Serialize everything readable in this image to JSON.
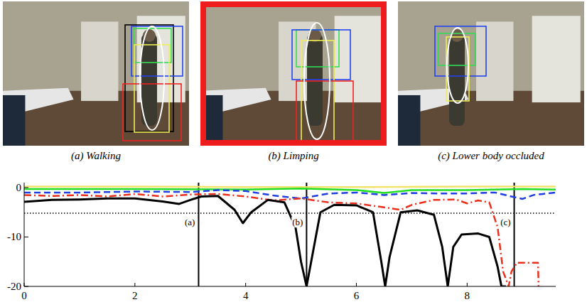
{
  "figure": {
    "panels": [
      {
        "caption": "(a) Walking",
        "highlighted": false
      },
      {
        "caption": "(b) Limping",
        "highlighted": true
      },
      {
        "caption": "(c) Lower body occluded",
        "highlighted": false
      }
    ]
  },
  "chart_data": {
    "type": "line",
    "xlim": [
      0,
      9.6
    ],
    "ylim": [
      -20,
      1
    ],
    "xticks": [
      0,
      2,
      4,
      6,
      8
    ],
    "yticks": [
      0,
      -10,
      -20
    ],
    "hlines": [
      -5.2
    ],
    "vlines": [
      {
        "x": 3.15,
        "label": "(a)"
      },
      {
        "x": 5.1,
        "label": "(b)"
      },
      {
        "x": 8.85,
        "label": "(c)"
      }
    ],
    "series": [
      {
        "color": "#f2e36b",
        "line_style": "solid",
        "x": [
          0,
          2,
          4,
          6,
          8,
          9.6
        ],
        "values": [
          0.2,
          0.2,
          0.1,
          0.1,
          0.2,
          0.2
        ]
      },
      {
        "color": "#22dd22",
        "line_style": "solid",
        "x": [
          0,
          2,
          4,
          5,
          6,
          6.5,
          7,
          8,
          9,
          9.6
        ],
        "values": [
          -0.3,
          -0.3,
          -0.4,
          -0.2,
          -0.5,
          -1.1,
          -0.5,
          -0.5,
          -0.3,
          -0.4
        ]
      },
      {
        "color": "#1f3fe0",
        "line_style": "dashed",
        "x": [
          0,
          1,
          2,
          3,
          3.5,
          4,
          4.5,
          5,
          5.5,
          6,
          6.5,
          7,
          7.5,
          8,
          8.5,
          8.8,
          9,
          9.2,
          9.6
        ],
        "values": [
          -1,
          -1,
          -0.8,
          -0.9,
          -0.5,
          -0.7,
          -1.6,
          -2.2,
          -1.2,
          -1,
          -1.5,
          -1.1,
          -1.2,
          -1.2,
          -1,
          -1.8,
          -2.3,
          -1.5,
          -1
        ]
      },
      {
        "color": "#e8301c",
        "line_style": "dashdot",
        "x": [
          0,
          0.5,
          1,
          1.5,
          2,
          2.5,
          3,
          3.5,
          4,
          4.5,
          5,
          5.5,
          6,
          6.5,
          6.8,
          7,
          7.4,
          7.8,
          8,
          8.2,
          8.4,
          8.55,
          8.65,
          8.75,
          8.8,
          8.9,
          9.2,
          9.28,
          9.29
        ],
        "values": [
          -1.5,
          -1.7,
          -1.5,
          -1.8,
          -1.3,
          -1.8,
          -1.4,
          -1.3,
          -1.8,
          -2.6,
          -2.2,
          -3,
          -3.2,
          -4,
          -4.5,
          -3.5,
          -2.5,
          -2.4,
          -3.2,
          -2.6,
          -3,
          -8,
          -17,
          -20,
          -17,
          -15.2,
          -15.2,
          -15.2,
          -20
        ]
      },
      {
        "color": "#000000",
        "line_style": "solid",
        "x": [
          0,
          0.5,
          1,
          1.5,
          2,
          2.5,
          2.8,
          3,
          3.2,
          3.5,
          3.8,
          3.95,
          4.1,
          4.4,
          4.7,
          4.9,
          5,
          5.1,
          5.2,
          5.35,
          5.6,
          6,
          6.3,
          6.45,
          6.52,
          6.6,
          6.8,
          7.1,
          7.4,
          7.55,
          7.65,
          7.75,
          7.9,
          8.2,
          8.4,
          8.55,
          8.62,
          8.7
        ],
        "values": [
          -2.9,
          -2.5,
          -2.4,
          -2.2,
          -2.2,
          -2.8,
          -3.3,
          -2.5,
          -1.8,
          -1.7,
          -4.5,
          -7.2,
          -5,
          -2.5,
          -3,
          -8,
          -15,
          -20,
          -14,
          -5,
          -3.5,
          -3.6,
          -5,
          -15,
          -20,
          -14,
          -5,
          -4.6,
          -5.5,
          -12,
          -20,
          -12,
          -9.5,
          -9.3,
          -10,
          -16,
          -20,
          -20
        ]
      }
    ]
  }
}
